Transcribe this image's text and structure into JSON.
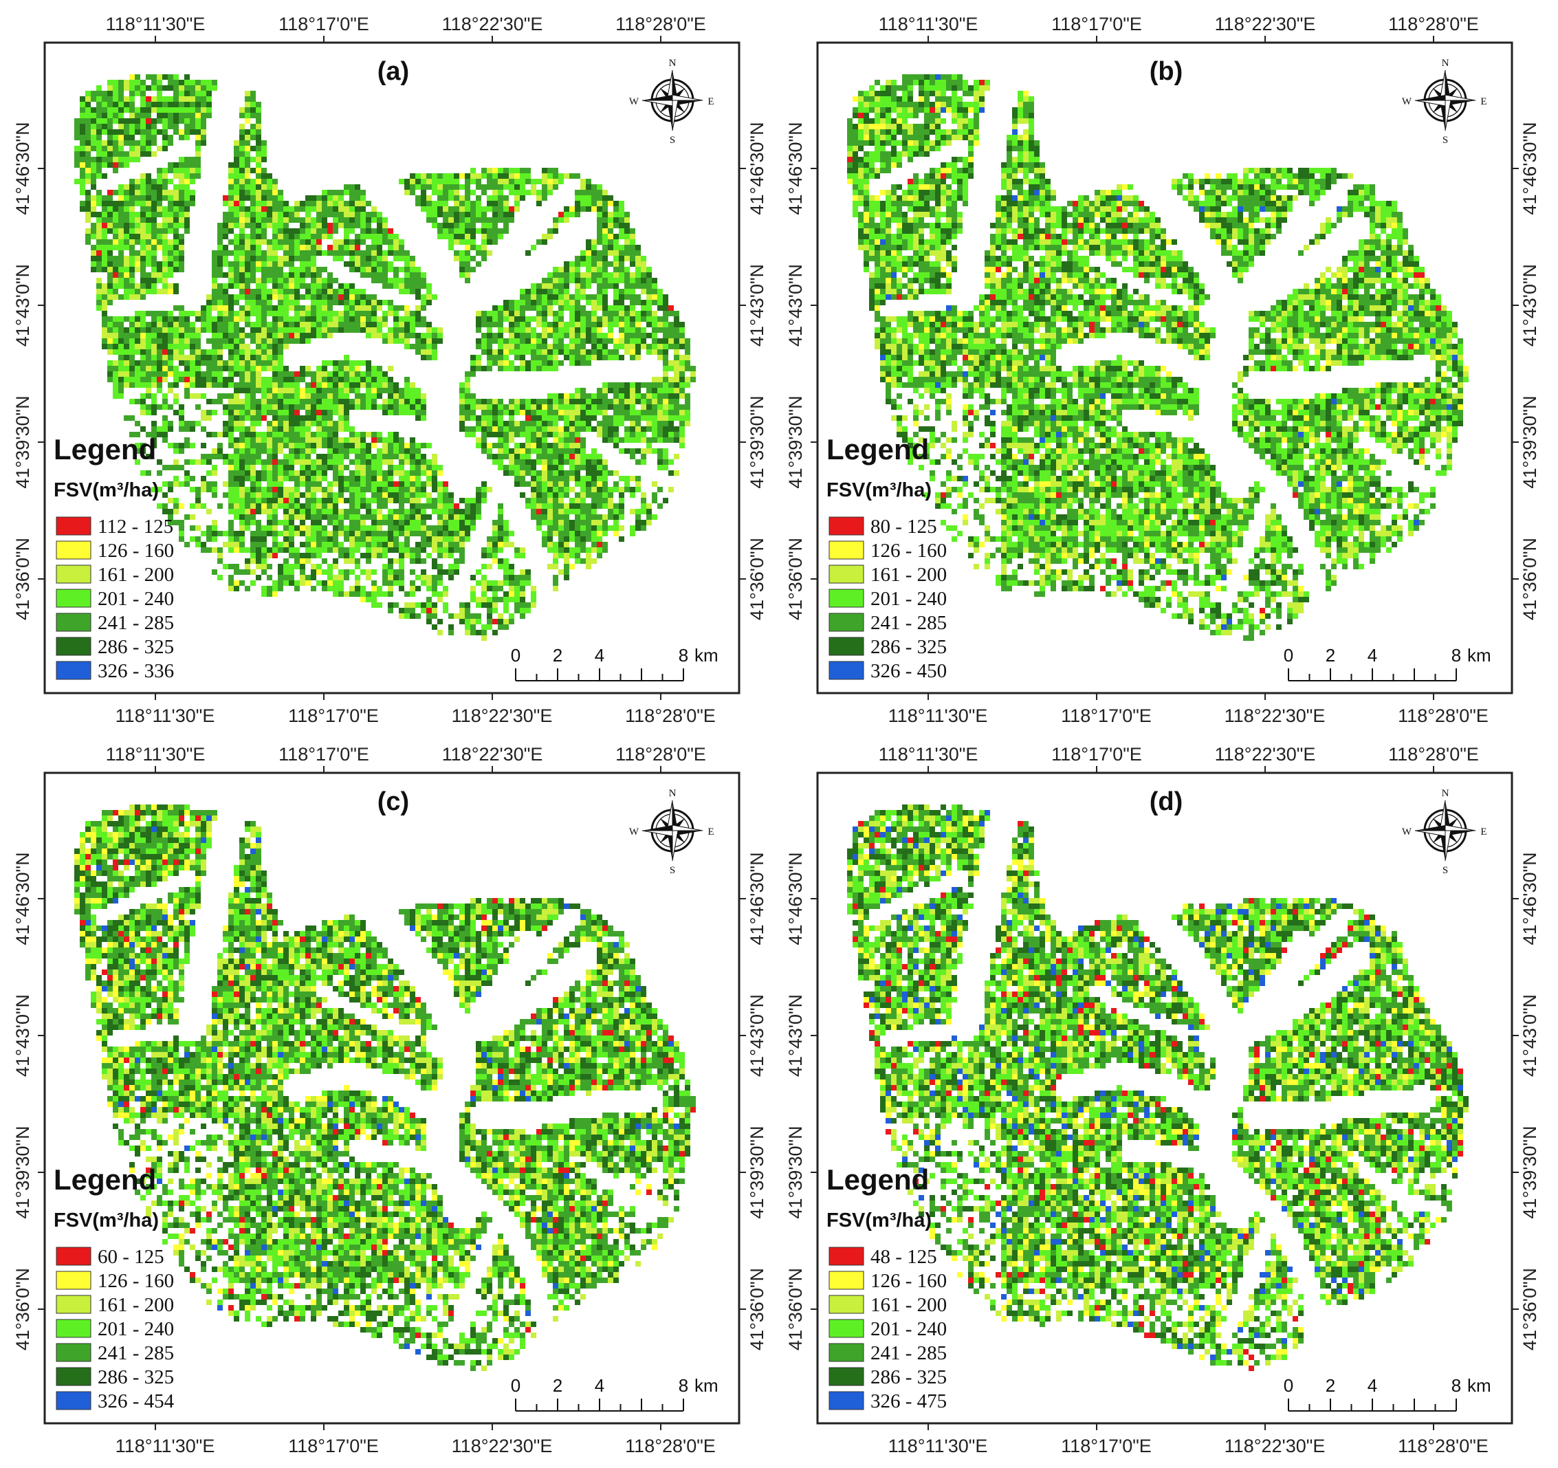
{
  "figure": {
    "east_labels": [
      "118°11'30\"E",
      "118°17'0\"E",
      "118°22'30\"E",
      "118°28'0\"E"
    ],
    "north_labels": [
      "41°46'30\"N",
      "41°43'0\"N",
      "41°39'30\"N",
      "41°36'0\"N"
    ],
    "legend_title": "Legend",
    "legend_variable": "FSV(m³/ha)",
    "scale": {
      "ticks": [
        "0",
        "2",
        "4",
        "8"
      ],
      "unit": "km"
    },
    "compass": {
      "n": "N",
      "s": "S",
      "e": "E",
      "w": "W"
    },
    "class_colors": [
      "#e8191b",
      "#ffff33",
      "#c8f03c",
      "#5ef025",
      "#3fa52a",
      "#256e1a",
      "#1f5fd8"
    ],
    "panels": [
      {
        "id": "a",
        "label": "(a)",
        "legend": [
          "112 - 125",
          "126 - 160",
          "161 - 200",
          "201 - 240",
          "241 - 285",
          "286 - 325",
          "326 - 336"
        ],
        "shares": [
          0.01,
          0.02,
          0.15,
          0.3,
          0.35,
          0.17,
          0.0
        ]
      },
      {
        "id": "b",
        "label": "(b)",
        "legend": [
          "80 - 125",
          "126 - 160",
          "161 - 200",
          "201 - 240",
          "241 - 285",
          "286 - 325",
          "326 - 450"
        ],
        "shares": [
          0.01,
          0.04,
          0.17,
          0.3,
          0.32,
          0.15,
          0.01
        ]
      },
      {
        "id": "c",
        "label": "(c)",
        "legend": [
          "60 - 125",
          "126 - 160",
          "161 - 200",
          "201 - 240",
          "241 - 285",
          "286 - 325",
          "326 - 454"
        ],
        "shares": [
          0.03,
          0.07,
          0.16,
          0.22,
          0.3,
          0.2,
          0.02
        ]
      },
      {
        "id": "d",
        "label": "(d)",
        "legend": [
          "48 - 125",
          "126 - 160",
          "161 - 200",
          "201 - 240",
          "241 - 285",
          "286 - 325",
          "326 - 475"
        ],
        "shares": [
          0.04,
          0.08,
          0.16,
          0.2,
          0.28,
          0.19,
          0.05
        ]
      }
    ]
  }
}
